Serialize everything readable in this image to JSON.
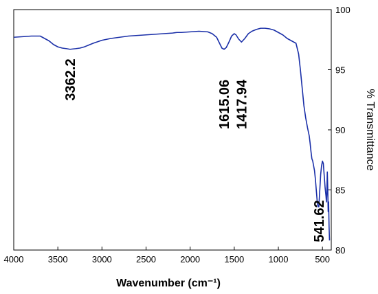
{
  "chart_data": {
    "type": "line",
    "title": "",
    "xlabel": "Wavenumber (cm⁻¹)",
    "ylabel": "% Transmittance",
    "xlim": [
      4000,
      400
    ],
    "ylim": [
      80,
      100
    ],
    "x_reversed": true,
    "y_axis_side": "right",
    "x_ticks": [
      4000,
      3500,
      3000,
      2500,
      2000,
      1500,
      1000,
      500
    ],
    "y_ticks": [
      80,
      85,
      90,
      95,
      100
    ],
    "grid": false,
    "legend": "none",
    "line_color": "#1a2fa8",
    "series": [
      {
        "x": [
          4000,
          3900,
          3800,
          3700,
          3650,
          3600,
          3550,
          3500,
          3450,
          3400,
          3362,
          3300,
          3250,
          3200,
          3150,
          3100,
          3000,
          2900,
          2800,
          2700,
          2600,
          2500,
          2400,
          2300,
          2200,
          2150,
          2100,
          2000,
          1900,
          1800,
          1750,
          1700,
          1660,
          1640,
          1615,
          1590,
          1560,
          1530,
          1500,
          1480,
          1450,
          1418,
          1380,
          1340,
          1300,
          1250,
          1200,
          1150,
          1100,
          1050,
          1000,
          950,
          900,
          850,
          800,
          770,
          750,
          730,
          710,
          690,
          670,
          650,
          640,
          630,
          620,
          610,
          600,
          590,
          580,
          570,
          560,
          550,
          541,
          530,
          520,
          510,
          500,
          490,
          480,
          470,
          460,
          455,
          450,
          445,
          440,
          435,
          430,
          425,
          420
        ],
        "y": [
          97.7,
          97.75,
          97.8,
          97.8,
          97.6,
          97.4,
          97.1,
          96.9,
          96.8,
          96.75,
          96.7,
          96.75,
          96.8,
          96.9,
          97.05,
          97.2,
          97.45,
          97.6,
          97.7,
          97.8,
          97.85,
          97.9,
          97.95,
          98.0,
          98.05,
          98.1,
          98.1,
          98.15,
          98.2,
          98.15,
          98.0,
          97.7,
          97.1,
          96.8,
          96.7,
          96.85,
          97.3,
          97.8,
          98.0,
          97.9,
          97.55,
          97.3,
          97.6,
          98.0,
          98.2,
          98.35,
          98.45,
          98.45,
          98.4,
          98.3,
          98.1,
          97.9,
          97.6,
          97.4,
          97.2,
          96.3,
          95.0,
          93.5,
          92.0,
          91.0,
          90.2,
          89.5,
          88.9,
          88.2,
          87.6,
          87.4,
          87.0,
          86.6,
          85.9,
          85.0,
          84.1,
          83.6,
          83.6,
          85.0,
          86.3,
          87.0,
          87.4,
          87.2,
          86.2,
          85.2,
          84.5,
          84.0,
          84.8,
          86.5,
          85.2,
          83.2,
          84.0,
          82.0,
          80.8
        ]
      }
    ],
    "annotations": [
      {
        "text": "3362.2",
        "x": 3362.2
      },
      {
        "text": "1615.06",
        "x": 1615.06
      },
      {
        "text": "1417.94",
        "x": 1417.94
      },
      {
        "text": "541.62",
        "x": 541.62
      }
    ]
  }
}
